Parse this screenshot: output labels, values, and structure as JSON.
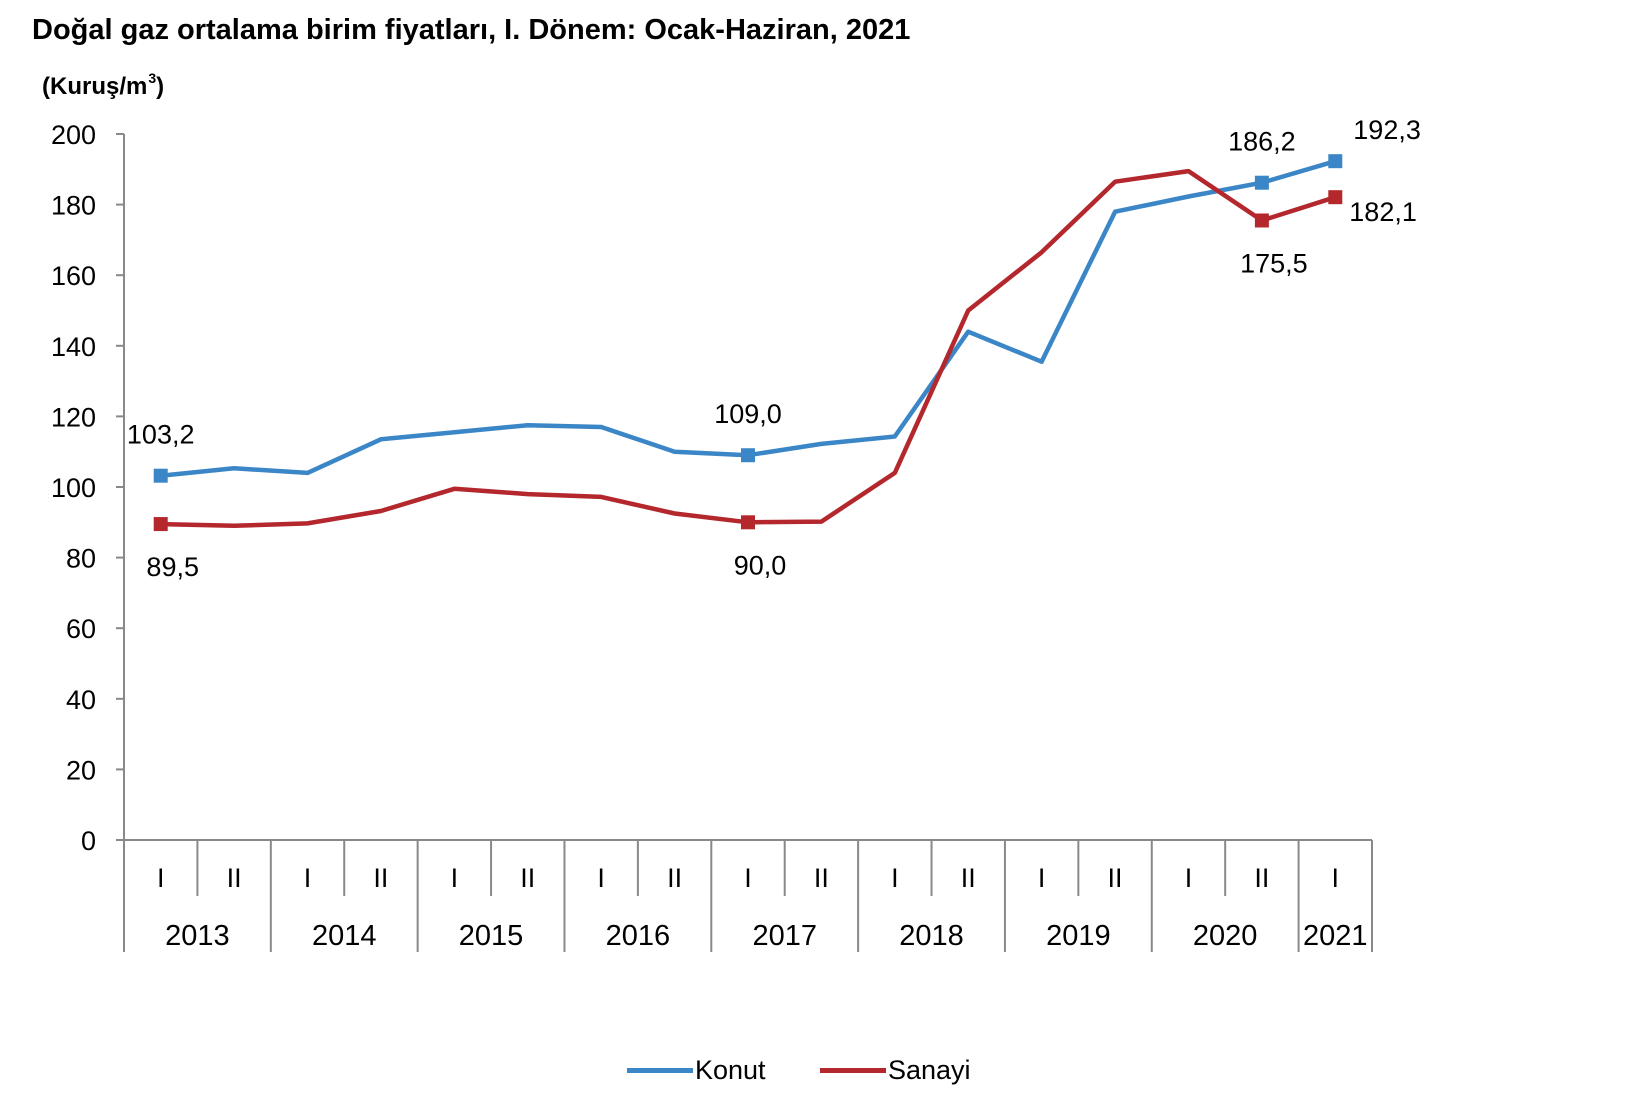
{
  "chart_data": {
    "type": "line",
    "title": "Doğal gaz ortalama birim fiyatları, I. Dönem: Ocak-Haziran, 2021",
    "ylabel": "(Kuruş/m",
    "ylabel_sup": "3",
    "ylabel_close": ")",
    "ylim": [
      0,
      200
    ],
    "yticks": [
      0,
      20,
      40,
      60,
      80,
      100,
      120,
      140,
      160,
      180,
      200
    ],
    "periods": [
      "I",
      "II",
      "I",
      "II",
      "I",
      "II",
      "I",
      "II",
      "I",
      "II",
      "I",
      "II",
      "I",
      "II",
      "I",
      "II",
      "I"
    ],
    "years": [
      "2013",
      "2014",
      "2015",
      "2016",
      "2017",
      "2018",
      "2019",
      "2020",
      "2021"
    ],
    "grid": false,
    "legend_position": "bottom",
    "series": [
      {
        "name": "Konut",
        "color": "#3b86c6",
        "values": [
          103.2,
          105.3,
          104.0,
          113.5,
          115.5,
          117.5,
          117.0,
          110.0,
          109.0,
          112.2,
          114.3,
          144.0,
          135.5,
          178.0,
          182.3,
          186.2,
          192.3
        ],
        "marked": [
          0,
          8,
          15,
          16
        ],
        "labels": [
          {
            "index": 0,
            "text": "103,2",
            "pos": "above"
          },
          {
            "index": 8,
            "text": "109,0",
            "pos": "above"
          },
          {
            "index": 15,
            "text": "186,2",
            "pos": "above"
          },
          {
            "index": 16,
            "text": "192,3",
            "pos": "above-right"
          }
        ]
      },
      {
        "name": "Sanayi",
        "color": "#b3272d",
        "values": [
          89.5,
          89.0,
          89.7,
          93.2,
          99.5,
          98.0,
          97.2,
          92.5,
          90.0,
          90.2,
          104.0,
          150.0,
          166.5,
          186.5,
          189.5,
          175.5,
          182.1
        ],
        "marked": [
          0,
          8,
          15,
          16
        ],
        "labels": [
          {
            "index": 0,
            "text": "89,5",
            "pos": "below"
          },
          {
            "index": 8,
            "text": "90,0",
            "pos": "below"
          },
          {
            "index": 15,
            "text": "175,5",
            "pos": "below"
          },
          {
            "index": 16,
            "text": "182,1",
            "pos": "right"
          }
        ]
      }
    ]
  }
}
